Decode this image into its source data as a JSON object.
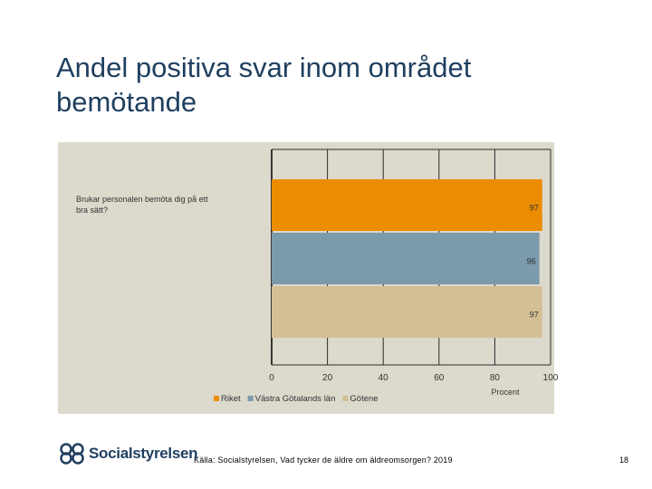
{
  "slide": {
    "title": "Andel positiva svar inom området bemötande",
    "source": "Källa: Socialstyrelsen, Vad tycker de äldre om äldreomsorgen? 2019",
    "page_number": "18",
    "logo_text": "Socialstyrelsen"
  },
  "chart_data": {
    "type": "bar",
    "orientation": "horizontal",
    "categories": [
      "Brukar personalen bemöta dig på ett bra sätt?"
    ],
    "series": [
      {
        "name": "Riket",
        "values": [
          97
        ],
        "color": "#ec8c00"
      },
      {
        "name": "Västra Götalands län",
        "values": [
          96
        ],
        "color": "#7b9aab"
      },
      {
        "name": "Götene",
        "values": [
          97
        ],
        "color": "#d4bf95"
      }
    ],
    "xlabel": "Procent",
    "ylabel": "",
    "xlim": [
      0,
      100
    ],
    "xticks": [
      "0",
      "20",
      "40",
      "60",
      "80",
      "100"
    ],
    "grid": "vertical",
    "legend_position": "bottom",
    "background": "#dcd9cd"
  }
}
